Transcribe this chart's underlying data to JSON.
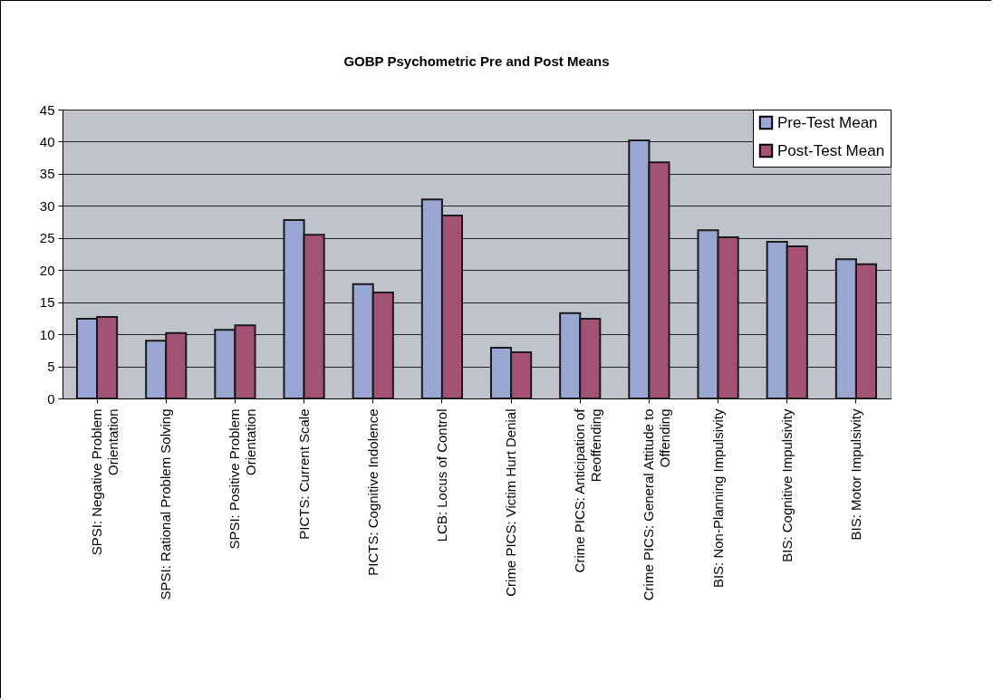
{
  "chart_data": {
    "type": "bar",
    "title": "GOBP Psychometric Pre and Post Means",
    "categories": [
      "SPSI: Negative Problem Orientation",
      "SPSI: Rational Problem Solving",
      "SPSI: Positive Problem Orientation",
      "PICTS: Current Scale",
      "PICTS: Cognitive Indolence",
      "LCB: Locus of Control",
      "Crime PICS: Victim Hurt Denial",
      "Crime PICS: Anticipation of Reoffending",
      "Crime PICS: General Attitude to Offending",
      "BIS: Non-Planning Impulsivity",
      "BIS: Cognitive Impulsivity",
      "BIS: Motor Impulsivity"
    ],
    "series": [
      {
        "name": "Pre-Test Mean",
        "color": "#9aa6d3",
        "values": [
          12.4,
          9.0,
          10.7,
          27.8,
          17.8,
          31.0,
          7.9,
          13.3,
          40.2,
          26.2,
          24.4,
          21.7
        ]
      },
      {
        "name": "Post-Test Mean",
        "color": "#a35275",
        "values": [
          12.7,
          10.2,
          11.4,
          25.5,
          16.5,
          28.5,
          7.2,
          12.4,
          36.8,
          25.1,
          23.7,
          20.9
        ]
      }
    ],
    "ylim": [
      0,
      45
    ],
    "yticks": [
      0,
      5,
      10,
      15,
      20,
      25,
      30,
      35,
      40,
      45
    ],
    "grid": "y",
    "legend": "top right"
  }
}
